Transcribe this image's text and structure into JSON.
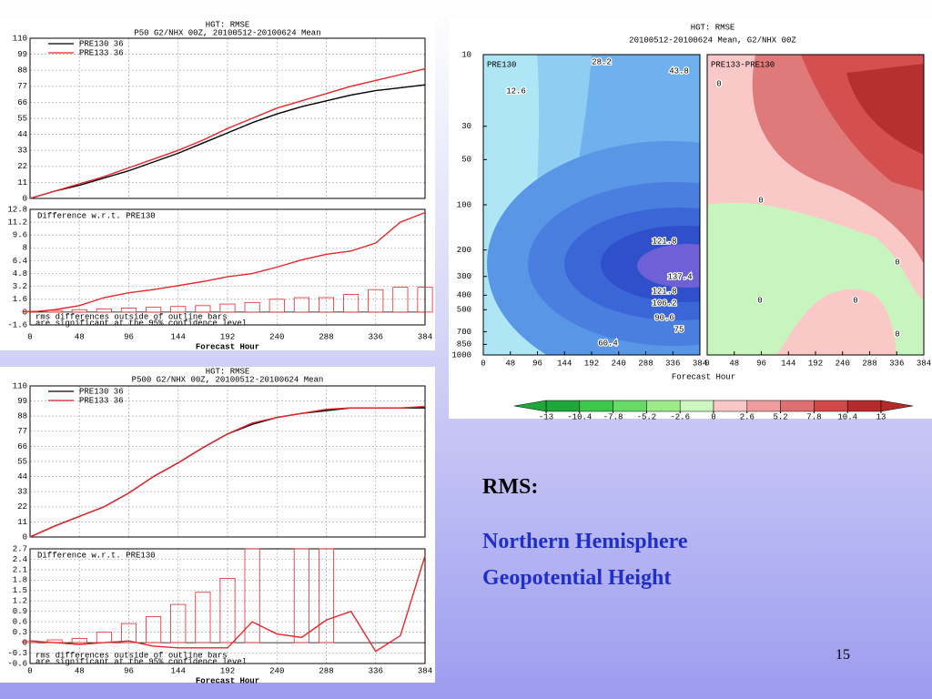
{
  "chart_data": [
    {
      "type": "line",
      "title": "HGT: RMSE",
      "subtitle": "P50 G2/NHX 00Z, 20100512-20100624 Mean",
      "x": [
        0,
        24,
        48,
        72,
        96,
        120,
        144,
        168,
        192,
        216,
        240,
        264,
        288,
        312,
        336,
        360,
        384
      ],
      "xlim": [
        0,
        384
      ],
      "xticks": [
        0,
        48,
        96,
        144,
        192,
        240,
        288,
        336,
        384
      ],
      "ylim": [
        0,
        110
      ],
      "yticks": [
        0,
        11,
        22,
        33,
        44,
        55,
        66,
        77,
        88,
        99,
        110
      ],
      "grid": true,
      "legend": "upper left",
      "series": [
        {
          "name": "PRE130   36",
          "color": "#000000",
          "values": [
            0,
            5,
            9,
            14,
            19,
            25,
            31,
            38,
            45,
            52,
            58,
            63,
            67,
            71,
            74,
            76,
            78
          ]
        },
        {
          "name": "PRE133   36",
          "color": "#e8262a",
          "values": [
            0,
            5,
            10,
            15,
            21,
            27,
            33,
            40,
            48,
            55,
            62,
            67,
            72,
            77,
            81,
            85,
            89
          ]
        }
      ]
    },
    {
      "type": "combo",
      "title": "Difference w.r.t. PRE130",
      "xlabel": "Forecast Hour",
      "annotations": [
        "rms differences outside of outline bars",
        "are significant at the 95% confidence level"
      ],
      "x": [
        0,
        24,
        48,
        72,
        96,
        120,
        144,
        168,
        192,
        216,
        240,
        264,
        288,
        312,
        336,
        360,
        384
      ],
      "xlim": [
        0,
        384
      ],
      "xticks": [
        0,
        48,
        96,
        144,
        192,
        240,
        288,
        336,
        384
      ],
      "ylim": [
        -1.6,
        12.8
      ],
      "yticks": [
        -1.6,
        0,
        1.6,
        3.2,
        4.8,
        6.4,
        8,
        9.6,
        11.2,
        12.8
      ],
      "grid": true,
      "series": [
        {
          "color": "#e8262a",
          "values": [
            0,
            0.3,
            0.8,
            1.8,
            2.4,
            2.8,
            3.3,
            3.8,
            4.4,
            4.8,
            5.6,
            6.5,
            7.2,
            7.6,
            8.6,
            11.2,
            12.4
          ]
        }
      ],
      "bars": {
        "color": "#e8262a",
        "values": [
          0.1,
          0.2,
          0.3,
          0.4,
          0.5,
          0.6,
          0.7,
          0.8,
          1.0,
          1.2,
          1.6,
          1.8,
          1.8,
          2.2,
          2.8,
          3.1,
          3.1
        ]
      }
    },
    {
      "type": "line",
      "title": "HGT: RMSE",
      "subtitle": "P500 G2/NHX 00Z, 20100512-20100624 Mean",
      "x": [
        0,
        24,
        48,
        72,
        96,
        120,
        144,
        168,
        192,
        216,
        240,
        264,
        288,
        312,
        336,
        360,
        384
      ],
      "xlim": [
        0,
        384
      ],
      "xticks": [
        0,
        48,
        96,
        144,
        192,
        240,
        288,
        336,
        384
      ],
      "ylim": [
        0,
        110
      ],
      "yticks": [
        0,
        11,
        22,
        33,
        44,
        55,
        66,
        77,
        88,
        99,
        110
      ],
      "grid": true,
      "legend": "upper left",
      "series": [
        {
          "name": "PRE130   36",
          "color": "#000000",
          "values": [
            0,
            8,
            15,
            22,
            32,
            44,
            54,
            65,
            75,
            82,
            87,
            90,
            92,
            94,
            94,
            94,
            94
          ]
        },
        {
          "name": "PRE133   36",
          "color": "#e8262a",
          "values": [
            0,
            8,
            15,
            22,
            32,
            44,
            54,
            65,
            75,
            83,
            87,
            90,
            93,
            94,
            94,
            94,
            95
          ]
        }
      ]
    },
    {
      "type": "combo",
      "title": "Difference w.r.t. PRE130",
      "xlabel": "Forecast Hour",
      "annotations": [
        "rms differences outside of outline bars",
        "are significant at the 95% confidence level"
      ],
      "x": [
        0,
        24,
        48,
        72,
        96,
        120,
        144,
        168,
        192,
        216,
        240,
        264,
        288,
        312,
        336,
        360,
        384
      ],
      "xlim": [
        0,
        384
      ],
      "xticks": [
        0,
        48,
        96,
        144,
        192,
        240,
        288,
        336,
        384
      ],
      "ylim": [
        -0.6,
        2.7
      ],
      "yticks": [
        -0.6,
        -0.3,
        0,
        0.3,
        0.6,
        0.9,
        1.2,
        1.5,
        1.8,
        2.1,
        2.4,
        2.7
      ],
      "grid": true,
      "series": [
        {
          "color": "#e8262a",
          "values": [
            0.05,
            0,
            -0.05,
            0,
            0.05,
            -0.1,
            -0.15,
            -0.15,
            -0.15,
            0.6,
            0.25,
            0.15,
            0.65,
            0.9,
            -0.25,
            0.2,
            2.5
          ]
        }
      ],
      "bars": {
        "color": "#e8262a",
        "values": [
          0.05,
          0.08,
          0.12,
          0.3,
          0.55,
          0.75,
          1.1,
          1.45,
          1.85,
          2.7,
          null,
          2.7,
          2.85,
          null,
          null,
          null,
          null
        ]
      }
    },
    {
      "type": "contour",
      "title": "HGT: RMSE",
      "subtitle": "20100512-20100624 Mean, G2/NHX 00Z",
      "xlabel": "Forecast Hour",
      "xlim": [
        0,
        384
      ],
      "xticks": [
        0,
        48,
        96,
        144,
        192,
        240,
        288,
        336,
        384
      ],
      "ylim": [
        10,
        1000
      ],
      "yticks": [
        10,
        30,
        50,
        100,
        200,
        300,
        400,
        500,
        700,
        850,
        1000
      ],
      "log_y": true,
      "panels": [
        {
          "title": "PRE130",
          "contour_labels": [
            "28.2",
            "43.8",
            "12.6",
            "121.8",
            "137.4",
            "121.8",
            "106.2",
            "90.6",
            "75",
            "60.4"
          ]
        },
        {
          "title": "PRE133-PRE130",
          "contour_labels": [
            "0",
            "0",
            "0",
            "0",
            "0",
            "0"
          ]
        }
      ],
      "colorbar": {
        "ticks": [
          -13,
          -10.4,
          -7.8,
          -5.2,
          -2.6,
          0,
          2.6,
          5.2,
          7.8,
          10.4,
          13
        ],
        "colors": [
          "#1fa83a",
          "#3cc84a",
          "#66dc66",
          "#9cec8c",
          "#ccf7c0",
          "#fbc8c8",
          "#f19c9c",
          "#e07070",
          "#d04848",
          "#b52a2a"
        ]
      }
    }
  ],
  "slide": {
    "heading": "RMS:",
    "subtitle_lines": [
      "Northern Hemisphere",
      "Geopotential Height"
    ],
    "page_number": "15"
  }
}
